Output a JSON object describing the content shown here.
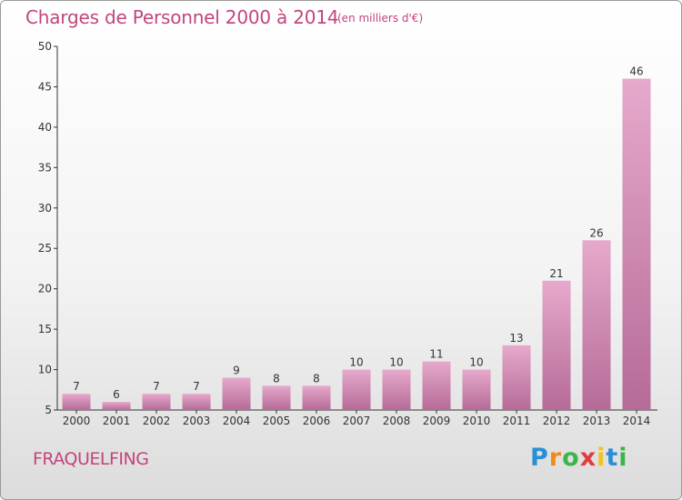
{
  "title": "Charges de Personnel 2000 à 2014",
  "subtitle": "(en milliers d'€)",
  "place": "FRAQUELFING",
  "logo": {
    "letters": [
      "P",
      "r",
      "o",
      "x",
      "i",
      "t",
      "i"
    ],
    "colors": [
      "#2b8fd6",
      "#f08a1c",
      "#3bb54a",
      "#e23b3b",
      "#f0c419",
      "#2b8fd6",
      "#3bb54a"
    ]
  },
  "colors": {
    "bar_top": "#e6a9cc",
    "bar_bottom": "#b56b97",
    "text": "#c2457f"
  },
  "chart_data": {
    "type": "bar",
    "categories": [
      "2000",
      "2001",
      "2002",
      "2003",
      "2004",
      "2005",
      "2006",
      "2007",
      "2008",
      "2009",
      "2010",
      "2011",
      "2012",
      "2013",
      "2014"
    ],
    "values": [
      7,
      6,
      7,
      7,
      9,
      8,
      8,
      10,
      10,
      11,
      10,
      13,
      21,
      26,
      46
    ],
    "ylim": [
      5,
      50
    ],
    "yticks": [
      5,
      10,
      15,
      20,
      25,
      30,
      35,
      40,
      45,
      50
    ],
    "xlabel": "",
    "ylabel": "",
    "grid": false
  }
}
